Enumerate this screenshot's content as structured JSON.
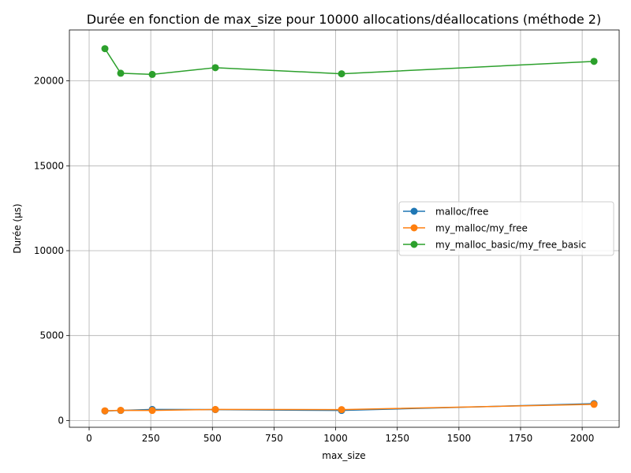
{
  "chart_data": {
    "type": "line",
    "title": "Durée en fonction de max_size pour 10000 allocations/déallocations (méthode 2)",
    "xlabel": "max_size",
    "ylabel": "Durée (µs)",
    "xlim": [
      -80,
      2150
    ],
    "ylim": [
      -400,
      23000
    ],
    "xticks": [
      0,
      250,
      500,
      750,
      1000,
      1250,
      1500,
      1750,
      2000
    ],
    "yticks": [
      0,
      5000,
      10000,
      15000,
      20000
    ],
    "grid": true,
    "legend_position": "center-right",
    "x": [
      64,
      128,
      256,
      512,
      1024,
      2048
    ],
    "series": [
      {
        "name": "malloc/free",
        "color": "#1f77b4",
        "values": [
          560,
          590,
          650,
          640,
          590,
          990
        ]
      },
      {
        "name": "my_malloc/my_free",
        "color": "#ff7f0e",
        "values": [
          570,
          600,
          590,
          650,
          640,
          950
        ]
      },
      {
        "name": "my_malloc_basic/my_free_basic",
        "color": "#2ca02c",
        "values": [
          21900,
          20450,
          20380,
          20780,
          20420,
          21150
        ]
      }
    ]
  }
}
